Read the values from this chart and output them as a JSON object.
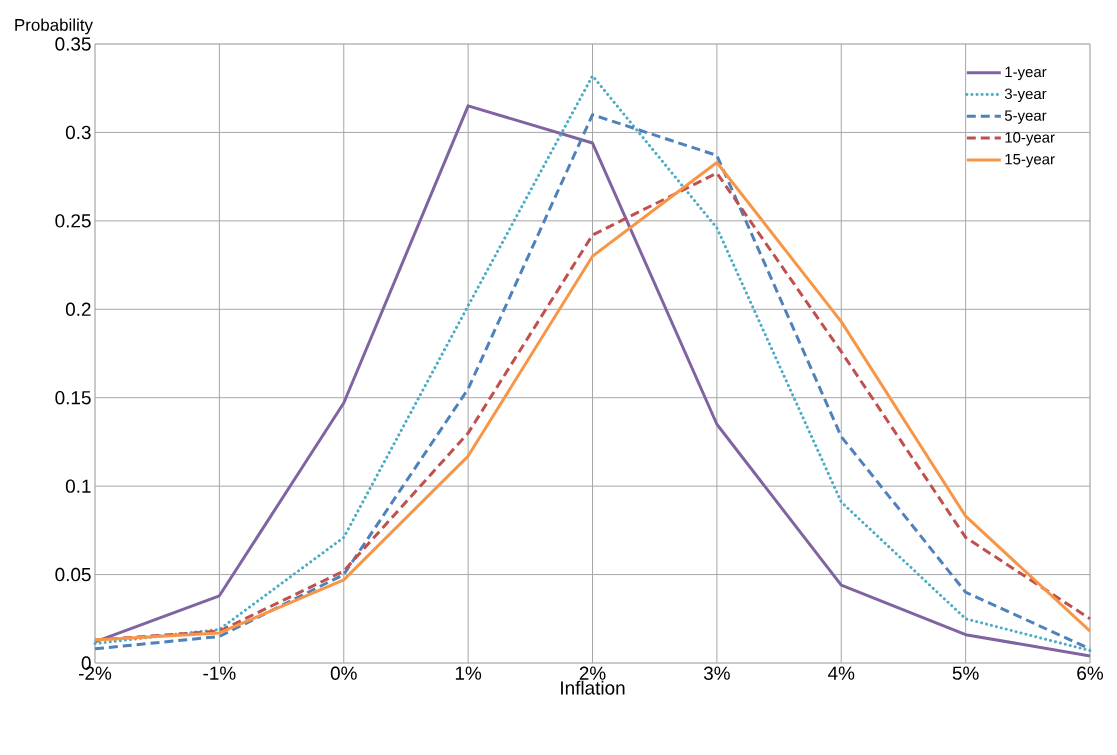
{
  "chart_data": {
    "type": "line",
    "xlabel": "Inflation",
    "ylabel": "Probability",
    "x": [
      -2,
      -1,
      0,
      1,
      2,
      3,
      4,
      5,
      6
    ],
    "xlim": [
      -2,
      6
    ],
    "xticks": [
      {
        "value": -2,
        "label": "-2%"
      },
      {
        "value": -1,
        "label": "-1%"
      },
      {
        "value": 0,
        "label": "0%"
      },
      {
        "value": 1,
        "label": "1%"
      },
      {
        "value": 2,
        "label": "2%"
      },
      {
        "value": 3,
        "label": "3%"
      },
      {
        "value": 4,
        "label": "4%"
      },
      {
        "value": 5,
        "label": "5%"
      },
      {
        "value": 6,
        "label": "6%"
      }
    ],
    "ylim": [
      0,
      0.35
    ],
    "yticks": [
      0,
      0.05,
      0.1,
      0.15,
      0.2,
      0.25,
      0.3,
      0.35
    ],
    "grid": true,
    "legend": "top right",
    "marker": "none",
    "series": [
      {
        "name": "1-year",
        "color": "#8064a2",
        "line_style": "solid",
        "values": [
          0.012,
          0.038,
          0.147,
          0.315,
          0.294,
          0.135,
          0.044,
          0.016,
          0.004
        ]
      },
      {
        "name": "3-year",
        "color": "#4bacc6",
        "line_style": "dotted",
        "values": [
          0.011,
          0.019,
          0.071,
          0.202,
          0.332,
          0.246,
          0.091,
          0.025,
          0.007
        ]
      },
      {
        "name": "5-year",
        "color": "#4f81bd",
        "line_style": "dashed",
        "values": [
          0.008,
          0.015,
          0.05,
          0.155,
          0.31,
          0.287,
          0.128,
          0.04,
          0.008
        ]
      },
      {
        "name": "10-year",
        "color": "#c0504d",
        "line_style": "dashed",
        "values": [
          0.013,
          0.018,
          0.052,
          0.13,
          0.242,
          0.277,
          0.176,
          0.071,
          0.025
        ]
      },
      {
        "name": "15-year",
        "color": "#f79646",
        "line_style": "solid",
        "values": [
          0.013,
          0.017,
          0.047,
          0.117,
          0.23,
          0.283,
          0.193,
          0.083,
          0.018
        ]
      }
    ]
  }
}
